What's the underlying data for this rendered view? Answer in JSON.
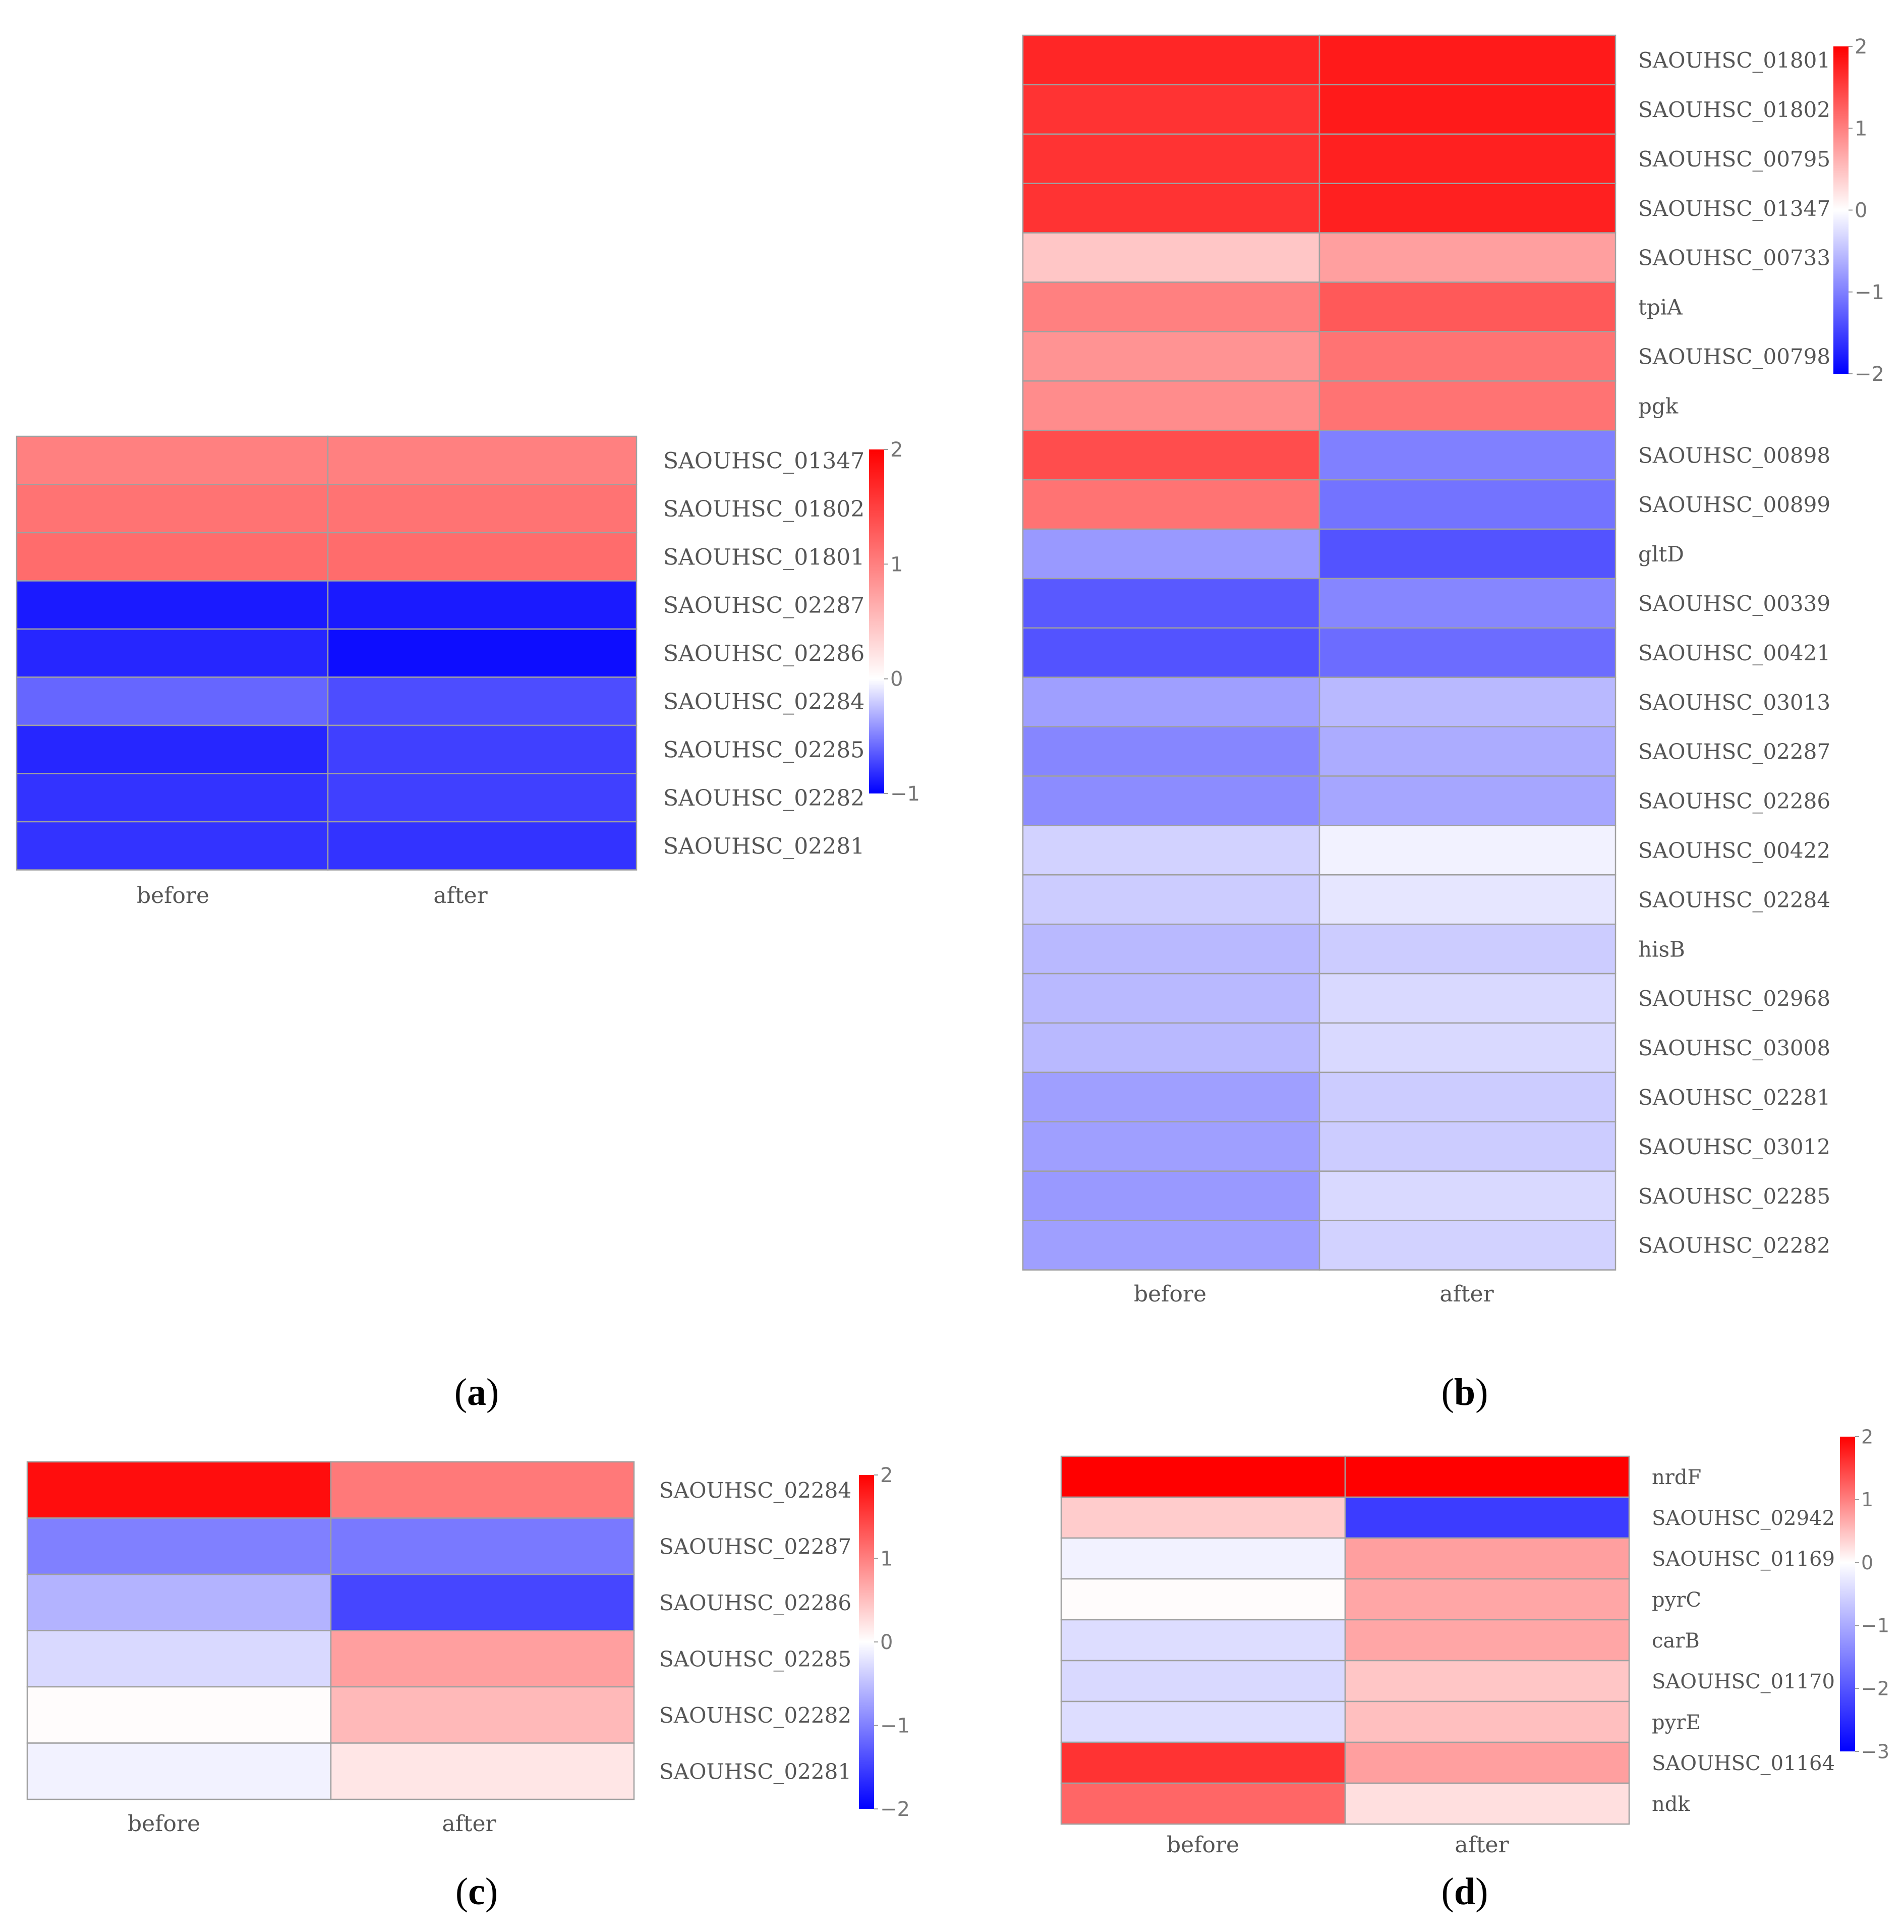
{
  "colors": {
    "low": "#0000ff",
    "mid": "#ffffff",
    "high": "#ff0000",
    "grid": "#a0a0a0"
  },
  "chart_data": [
    {
      "type": "heatmap",
      "panel_label": "a",
      "columns": [
        "before",
        "after"
      ],
      "rows": [
        "SAOUHSC_01347",
        "SAOUHSC_01802",
        "SAOUHSC_01801",
        "SAOUHSC_02287",
        "SAOUHSC_02286",
        "SAOUHSC_02284",
        "SAOUHSC_02285",
        "SAOUHSC_02282",
        "SAOUHSC_02281"
      ],
      "values": [
        [
          1.0,
          1.0
        ],
        [
          1.1,
          1.1
        ],
        [
          1.15,
          1.15
        ],
        [
          -0.9,
          -0.9
        ],
        [
          -0.85,
          -0.95
        ],
        [
          -0.6,
          -0.7
        ],
        [
          -0.85,
          -0.75
        ],
        [
          -0.8,
          -0.75
        ],
        [
          -0.8,
          -0.8
        ]
      ],
      "scale": {
        "min": -1,
        "max": 2,
        "ticks": [
          "2",
          "1",
          "0",
          "−1"
        ],
        "tick_values": [
          2,
          1,
          0,
          -1
        ]
      }
    },
    {
      "type": "heatmap",
      "panel_label": "b",
      "columns": [
        "before",
        "after"
      ],
      "rows": [
        "SAOUHSC_01801",
        "SAOUHSC_01802",
        "SAOUHSC_00795",
        "SAOUHSC_01347",
        "SAOUHSC_00733",
        "tpiA",
        "SAOUHSC_00798",
        "pgk",
        "SAOUHSC_00898",
        "SAOUHSC_00899",
        "gltD",
        "SAOUHSC_00339",
        "SAOUHSC_00421",
        "SAOUHSC_03013",
        "SAOUHSC_02287",
        "SAOUHSC_02286",
        "SAOUHSC_00422",
        "SAOUHSC_02284",
        "hisB",
        "SAOUHSC_02968",
        "SAOUHSC_03008",
        "SAOUHSC_02281",
        "SAOUHSC_03012",
        "SAOUHSC_02285",
        "SAOUHSC_02282"
      ],
      "values": [
        [
          1.7,
          1.8
        ],
        [
          1.6,
          1.8
        ],
        [
          1.6,
          1.75
        ],
        [
          1.6,
          1.75
        ],
        [
          0.45,
          0.75
        ],
        [
          1.0,
          1.3
        ],
        [
          0.85,
          1.1
        ],
        [
          0.9,
          1.1
        ],
        [
          1.4,
          -1.0
        ],
        [
          1.1,
          -1.1
        ],
        [
          -0.8,
          -1.35
        ],
        [
          -1.3,
          -0.95
        ],
        [
          -1.35,
          -1.15
        ],
        [
          -0.75,
          -0.55
        ],
        [
          -0.95,
          -0.65
        ],
        [
          -0.9,
          -0.7
        ],
        [
          -0.35,
          -0.1
        ],
        [
          -0.4,
          -0.2
        ],
        [
          -0.55,
          -0.4
        ],
        [
          -0.55,
          -0.3
        ],
        [
          -0.55,
          -0.3
        ],
        [
          -0.75,
          -0.4
        ],
        [
          -0.75,
          -0.4
        ],
        [
          -0.8,
          -0.3
        ],
        [
          -0.75,
          -0.35
        ]
      ],
      "scale": {
        "min": -2,
        "max": 2,
        "ticks": [
          "2",
          "1",
          "0",
          "−1",
          "−2"
        ],
        "tick_values": [
          2,
          1,
          0,
          -1,
          -2
        ]
      }
    },
    {
      "type": "heatmap",
      "panel_label": "c",
      "columns": [
        "before",
        "after"
      ],
      "rows": [
        "SAOUHSC_02284",
        "SAOUHSC_02287",
        "SAOUHSC_02286",
        "SAOUHSC_02285",
        "SAOUHSC_02282",
        "SAOUHSC_02281"
      ],
      "values": [
        [
          1.9,
          1.05
        ],
        [
          -1.0,
          -1.05
        ],
        [
          -0.6,
          -1.45
        ],
        [
          -0.3,
          0.75
        ],
        [
          0.02,
          0.55
        ],
        [
          -0.1,
          0.2
        ]
      ],
      "scale": {
        "min": -2,
        "max": 2,
        "ticks": [
          "2",
          "1",
          "0",
          "−1",
          "−2"
        ],
        "tick_values": [
          2,
          1,
          0,
          -1,
          -2
        ]
      }
    },
    {
      "type": "heatmap",
      "panel_label": "d",
      "columns": [
        "before",
        "after"
      ],
      "rows": [
        "nrdF",
        "SAOUHSC_02942",
        "SAOUHSC_01169",
        "pyrC",
        "carB",
        "SAOUHSC_01170",
        "pyrE",
        "SAOUHSC_01164",
        "ndk"
      ],
      "values": [
        [
          2.1,
          2.0
        ],
        [
          0.4,
          -2.3
        ],
        [
          -0.15,
          0.75
        ],
        [
          0.02,
          0.7
        ],
        [
          -0.4,
          0.7
        ],
        [
          -0.45,
          0.45
        ],
        [
          -0.4,
          0.5
        ],
        [
          1.6,
          0.75
        ],
        [
          1.2,
          0.25
        ]
      ],
      "scale": {
        "min": -3,
        "max": 2,
        "ticks": [
          "2",
          "1",
          "0",
          "−1",
          "−2",
          "−3"
        ],
        "tick_values": [
          2,
          1,
          0,
          -1,
          -2,
          -3
        ]
      }
    }
  ]
}
